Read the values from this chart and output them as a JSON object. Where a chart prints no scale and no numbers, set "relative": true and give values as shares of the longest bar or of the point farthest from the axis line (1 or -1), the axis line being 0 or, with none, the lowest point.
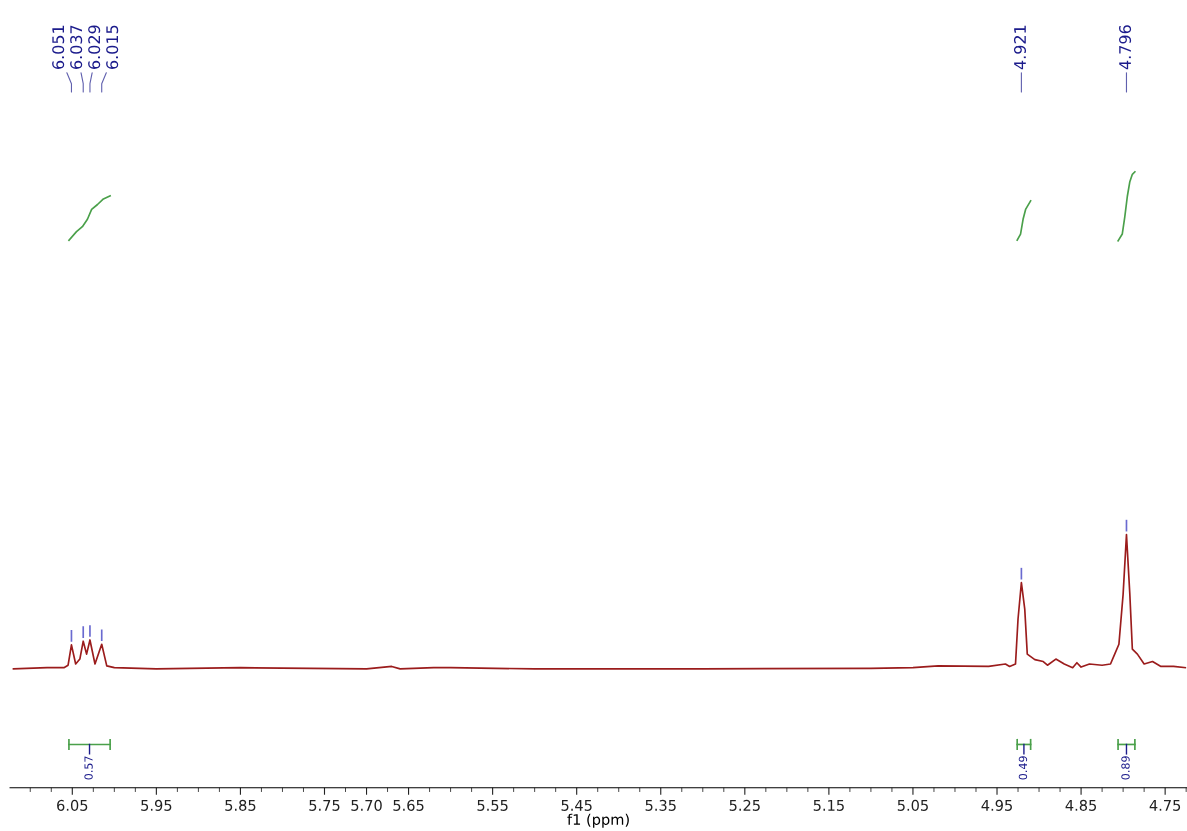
{
  "chart_data": {
    "type": "line",
    "relative": true,
    "xlabel": "f1 (ppm)",
    "xlim": [
      6.124,
      4.724
    ],
    "xticks": [
      {
        "value": 6.1,
        "label": null
      },
      {
        "value": 6.075,
        "label": null
      },
      {
        "value": 6.05,
        "label": "6.05"
      },
      {
        "value": 6.025,
        "label": null
      },
      {
        "value": 6.0,
        "label": null
      },
      {
        "value": 5.975,
        "label": null
      },
      {
        "value": 5.95,
        "label": "5.95"
      },
      {
        "value": 5.925,
        "label": null
      },
      {
        "value": 5.9,
        "label": null
      },
      {
        "value": 5.875,
        "label": null
      },
      {
        "value": 5.85,
        "label": "5.85"
      },
      {
        "value": 5.825,
        "label": null
      },
      {
        "value": 5.8,
        "label": null
      },
      {
        "value": 5.775,
        "label": null
      },
      {
        "value": 5.75,
        "label": "5.75"
      },
      {
        "value": 5.725,
        "label": null
      },
      {
        "value": 5.7,
        "label": "5.70"
      },
      {
        "value": 5.675,
        "label": null
      },
      {
        "value": 5.65,
        "label": "5.65"
      },
      {
        "value": 5.625,
        "label": null
      },
      {
        "value": 5.6,
        "label": null
      },
      {
        "value": 5.575,
        "label": null
      },
      {
        "value": 5.55,
        "label": "5.55"
      },
      {
        "value": 5.525,
        "label": null
      },
      {
        "value": 5.5,
        "label": null
      },
      {
        "value": 5.475,
        "label": null
      },
      {
        "value": 5.45,
        "label": "5.45"
      },
      {
        "value": 5.425,
        "label": null
      },
      {
        "value": 5.4,
        "label": null
      },
      {
        "value": 5.375,
        "label": null
      },
      {
        "value": 5.35,
        "label": "5.35"
      },
      {
        "value": 5.325,
        "label": null
      },
      {
        "value": 5.3,
        "label": null
      },
      {
        "value": 5.275,
        "label": null
      },
      {
        "value": 5.25,
        "label": "5.25"
      },
      {
        "value": 5.225,
        "label": null
      },
      {
        "value": 5.2,
        "label": null
      },
      {
        "value": 5.175,
        "label": null
      },
      {
        "value": 5.15,
        "label": "5.15"
      },
      {
        "value": 5.125,
        "label": null
      },
      {
        "value": 5.1,
        "label": null
      },
      {
        "value": 5.075,
        "label": null
      },
      {
        "value": 5.05,
        "label": "5.05"
      },
      {
        "value": 5.025,
        "label": null
      },
      {
        "value": 5.0,
        "label": null
      },
      {
        "value": 4.975,
        "label": null
      },
      {
        "value": 4.95,
        "label": "4.95"
      },
      {
        "value": 4.925,
        "label": null
      },
      {
        "value": 4.9,
        "label": null
      },
      {
        "value": 4.875,
        "label": null
      },
      {
        "value": 4.85,
        "label": "4.85"
      },
      {
        "value": 4.825,
        "label": null
      },
      {
        "value": 4.8,
        "label": null
      },
      {
        "value": 4.775,
        "label": null
      },
      {
        "value": 4.75,
        "label": "4.75"
      },
      {
        "value": 4.725,
        "label": null
      }
    ],
    "tick_labels": "x",
    "grid": false,
    "legend": "bottom",
    "series": [
      {
        "color": "#9b1c1c",
        "x": [
          6.12,
          6.08,
          6.06,
          6.055,
          6.051,
          6.046,
          6.041,
          6.037,
          6.033,
          6.029,
          6.023,
          6.015,
          6.009,
          6.0,
          5.95,
          5.85,
          5.7,
          5.67,
          5.66,
          5.62,
          5.6,
          5.5,
          5.3,
          5.1,
          5.05,
          5.02,
          4.96,
          4.94,
          4.935,
          4.928,
          4.925,
          4.921,
          4.917,
          4.914,
          4.905,
          4.895,
          4.89,
          4.88,
          4.87,
          4.86,
          4.855,
          4.85,
          4.84,
          4.825,
          4.815,
          4.81,
          4.805,
          4.8,
          4.796,
          4.792,
          4.789,
          4.783,
          4.775,
          4.765,
          4.755,
          4.74,
          4.726
        ],
        "values": [
          0.193,
          0.195,
          0.195,
          0.199,
          0.232,
          0.201,
          0.209,
          0.238,
          0.217,
          0.24,
          0.201,
          0.233,
          0.198,
          0.195,
          0.193,
          0.195,
          0.193,
          0.197,
          0.193,
          0.195,
          0.195,
          0.193,
          0.193,
          0.194,
          0.195,
          0.198,
          0.197,
          0.201,
          0.197,
          0.201,
          0.274,
          0.333,
          0.29,
          0.217,
          0.208,
          0.205,
          0.199,
          0.209,
          0.201,
          0.195,
          0.203,
          0.196,
          0.201,
          0.199,
          0.201,
          0.217,
          0.233,
          0.314,
          0.411,
          0.314,
          0.225,
          0.217,
          0.201,
          0.205,
          0.197,
          0.197,
          0.195
        ]
      },
      {
        "name": "0.57",
        "color": "#4aa04a",
        "x": [
          6.054,
          6.045,
          6.038,
          6.032,
          6.027,
          6.02,
          6.013,
          6.005
        ],
        "values": [
          0.889,
          0.903,
          0.911,
          0.923,
          0.939,
          0.947,
          0.956,
          0.961
        ]
      },
      {
        "name": "0.49",
        "color": "#4aa04a",
        "x": [
          4.926,
          4.922,
          4.919,
          4.916,
          4.91
        ],
        "values": [
          0.889,
          0.899,
          0.923,
          0.939,
          0.953
        ]
      },
      {
        "name": "0.89",
        "color": "#4aa04a",
        "x": [
          4.806,
          4.801,
          4.798,
          4.795,
          4.792,
          4.789,
          4.786
        ],
        "values": [
          0.888,
          0.899,
          0.927,
          0.96,
          0.984,
          0.996,
          1.0
        ]
      }
    ],
    "annotations": [
      {
        "text": "6.051",
        "x": 6.051
      },
      {
        "text": "6.037",
        "x": 6.037
      },
      {
        "text": "6.029",
        "x": 6.029
      },
      {
        "text": "6.015",
        "x": 6.015
      },
      {
        "text": "4.921",
        "x": 4.921
      },
      {
        "text": "4.796",
        "x": 4.796
      }
    ]
  }
}
